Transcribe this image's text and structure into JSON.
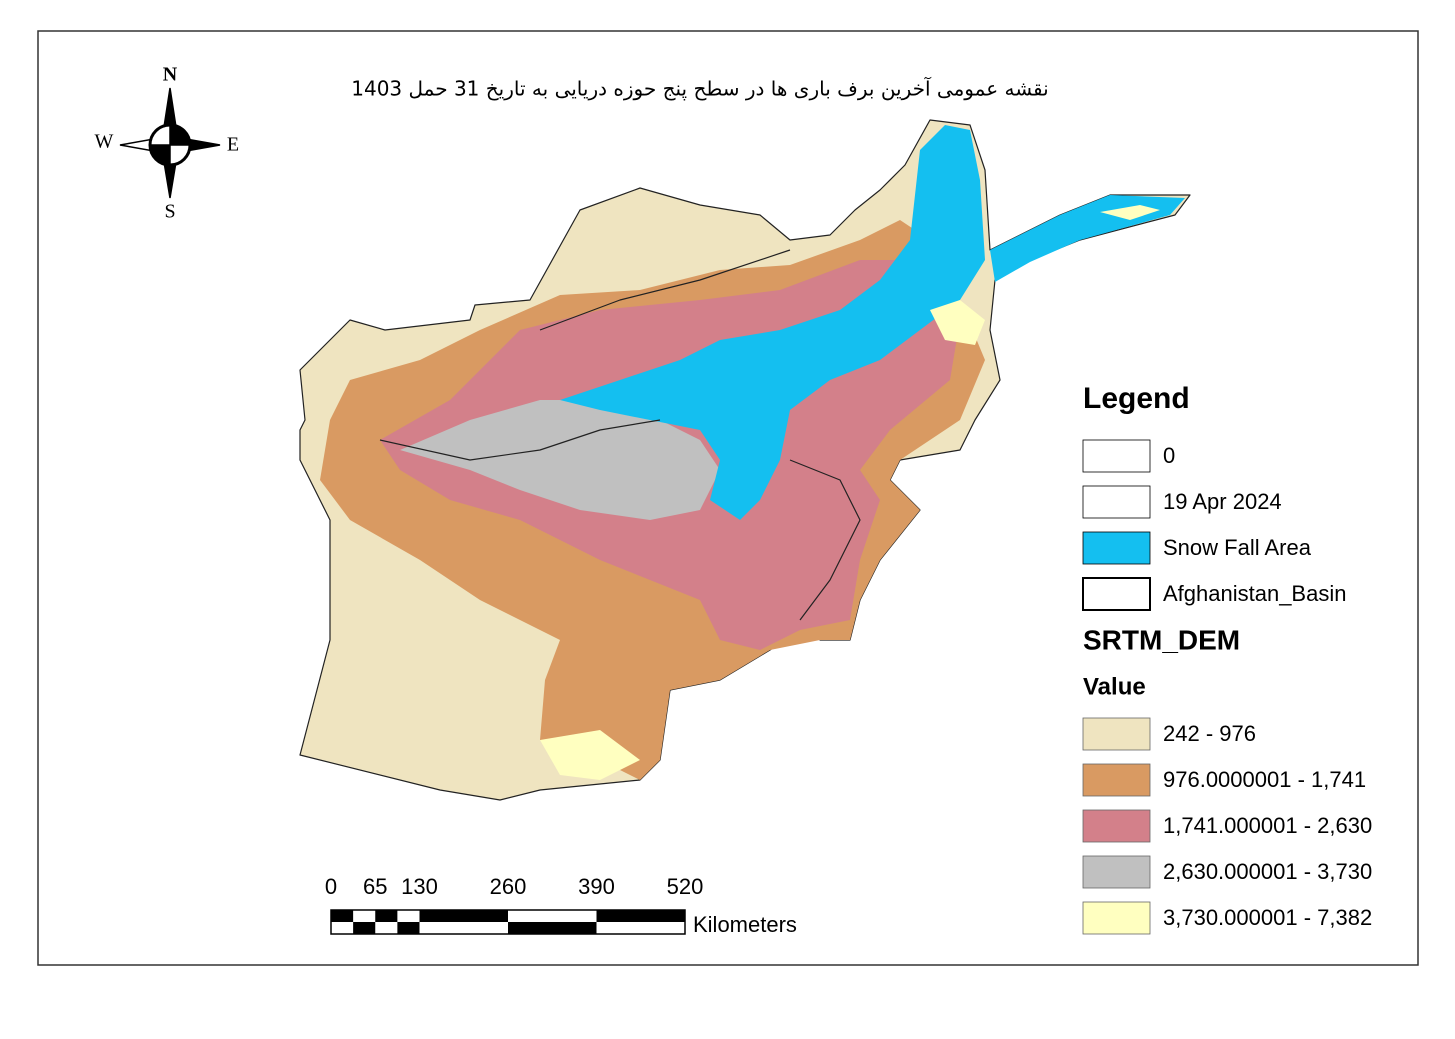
{
  "title": "نقشه عمومی آخرین برف باری ها در سطح پنج حوزه دریایی به تاریخ 31 حمل 1403",
  "compass": {
    "north": "N",
    "south": "S",
    "east": "E",
    "west": "W"
  },
  "legend": {
    "title": "Legend",
    "items": [
      {
        "label": "0",
        "color": "#ffffff"
      },
      {
        "label": "19 Apr 2024",
        "color": "#ffffff"
      },
      {
        "label": "Snow Fall Area",
        "color": "#14bff0"
      },
      {
        "label": "Afghanistan_Basin",
        "color": "#ffffff"
      }
    ]
  },
  "dem_legend": {
    "title": "SRTM_DEM",
    "subtitle": "Value",
    "classes": [
      {
        "label": "242 - 976",
        "color": "#efe4c0"
      },
      {
        "label": "976.0000001 - 1,741",
        "color": "#d99a62"
      },
      {
        "label": "1,741.000001 - 2,630",
        "color": "#d3808a"
      },
      {
        "label": "2,630.000001 - 3,730",
        "color": "#c0c0c0"
      },
      {
        "label": "3,730.000001 - 7,382",
        "color": "#ffffc0"
      }
    ]
  },
  "scale_bar": {
    "ticks": [
      0,
      65,
      130,
      260,
      390,
      520
    ],
    "unit": "Kilometers"
  }
}
